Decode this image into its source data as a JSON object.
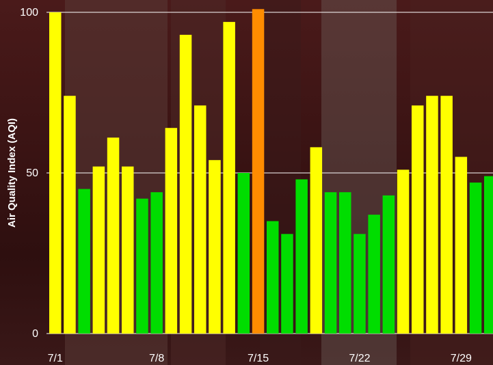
{
  "chart_data": {
    "type": "bar",
    "ylabel": "Air Quality Index (AQI)",
    "ylim": [
      0,
      100
    ],
    "y_ticks": [
      "0",
      "50",
      "100"
    ],
    "x_ticks": [
      "7/1",
      "7/8",
      "7/15",
      "7/22",
      "7/29"
    ],
    "grid": "horizontal",
    "categories": [
      "7/1",
      "7/2",
      "7/3",
      "7/4",
      "7/5",
      "7/6",
      "7/7",
      "7/8",
      "7/9",
      "7/10",
      "7/11",
      "7/12",
      "7/13",
      "7/14",
      "7/15",
      "7/16",
      "7/17",
      "7/18",
      "7/19",
      "7/20",
      "7/21",
      "7/22",
      "7/23",
      "7/24",
      "7/25",
      "7/26",
      "7/27",
      "7/28",
      "7/29",
      "7/30",
      "7/31"
    ],
    "values": [
      100,
      74,
      45,
      52,
      61,
      52,
      42,
      44,
      64,
      93,
      71,
      54,
      97,
      50,
      101,
      35,
      31,
      48,
      58,
      44,
      44,
      31,
      37,
      43,
      51,
      71,
      74,
      74,
      55,
      47,
      49
    ],
    "colors": [
      "#ffff00",
      "#ffff00",
      "#00dd00",
      "#ffff00",
      "#ffff00",
      "#ffff00",
      "#00dd00",
      "#00dd00",
      "#ffff00",
      "#ffff00",
      "#ffff00",
      "#ffff00",
      "#ffff00",
      "#00dd00",
      "#ff8c00",
      "#00dd00",
      "#00dd00",
      "#00dd00",
      "#ffff00",
      "#00dd00",
      "#00dd00",
      "#00dd00",
      "#00dd00",
      "#00dd00",
      "#ffff00",
      "#ffff00",
      "#ffff00",
      "#ffff00",
      "#ffff00",
      "#00dd00",
      "#00dd00"
    ],
    "legend": "none"
  }
}
